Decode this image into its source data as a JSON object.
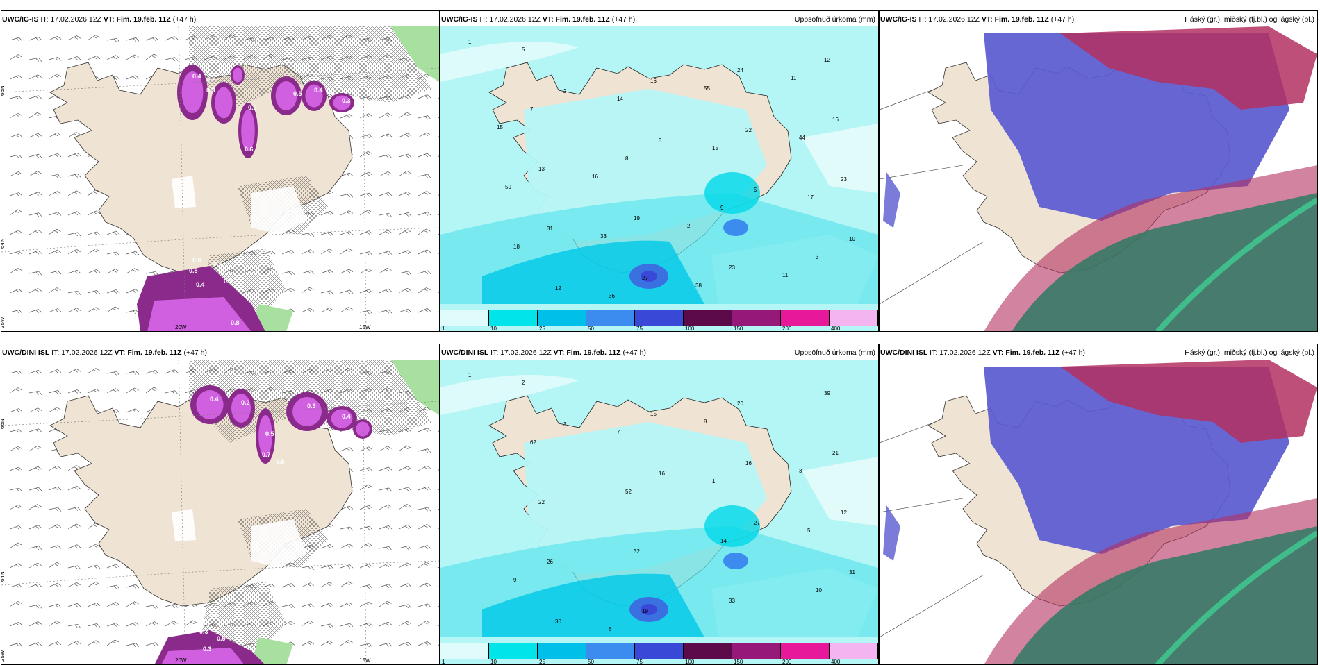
{
  "rows": [
    {
      "model": "UWC/IG-IS",
      "left_header": {
        "model": "UWC/IG-IS",
        "it": " IT: 17.02.2026 12Z ",
        "vt_label": "VT: Fim. 19.feb. 11Z",
        "lead": " (+47 h)"
      },
      "mid_header": {
        "model": "UWC/IG-IS",
        "it": " IT: 17.02.2026 12Z ",
        "vt_label": "VT: Fim. 19.feb. 11Z",
        "lead": " (+47 h)",
        "right": "Uppsöfnuð úrkoma (mm)"
      },
      "right_header": {
        "model": "UWC/IG-IS",
        "it": " IT: 17.02.2026 12Z ",
        "vt_label": "VT: Fim. 19.feb. 11Z",
        "lead": " (+47 h)",
        "right": "Háský (gr.), miðský (fj.bl.) og lágský (bl.)"
      },
      "left_labels": [
        "0.4",
        "0.7",
        "0.3",
        "0.2",
        "0.6",
        "0.5",
        "0.4",
        "0.3",
        "0.6",
        "0.8",
        "0.4",
        "0.3",
        "0.4",
        "0.8"
      ],
      "precip_labels": [
        "1",
        "2",
        "3",
        "5",
        "10",
        "12",
        "16",
        "22",
        "23",
        "31",
        "27",
        "24",
        "16",
        "13",
        "19",
        "23",
        "12",
        "7",
        "8",
        "9",
        "3",
        "5",
        "14",
        "15",
        "17",
        "18",
        "36",
        "55",
        "44",
        "59",
        "33",
        "38",
        "11",
        "15",
        "16",
        "2",
        "11"
      ],
      "axis_labels": {
        "lat66": "66N",
        "lat64": "64N",
        "lon20": "20W",
        "lon15": "15W",
        "lon25": "25W"
      }
    },
    {
      "model": "UWC/DINI ISL",
      "left_header": {
        "model": "UWC/DINI ISL",
        "it": " IT: 17.02.2026 12Z ",
        "vt_label": "VT: Fim. 19.feb. 11Z",
        "lead": " (+47 h)"
      },
      "mid_header": {
        "model": "UWC/DINI ISL",
        "it": " IT: 17.02.2026 12Z ",
        "vt_label": "VT: Fim. 19.feb. 11Z",
        "lead": " (+47 h)",
        "right": "Uppsöfnuð úrkoma (mm)"
      },
      "right_header": {
        "model": "UWC/DINI ISL",
        "it": " IT: 17.02.2026 12Z ",
        "vt_label": "VT: Fim. 19.feb. 11Z",
        "lead": " (+47 h)",
        "right": "Háský (gr.), miðský (fj.bl.) og lágský (bl.)"
      },
      "left_labels": [
        "0.4",
        "0.2",
        "0.5",
        "0.3",
        "0.4",
        "0.7",
        "0.5",
        "0.6",
        "0.4",
        "0.3",
        "0.5",
        "0.3"
      ],
      "precip_labels": [
        "1",
        "3",
        "16",
        "27",
        "31",
        "30",
        "15",
        "16",
        "12",
        "26",
        "19",
        "20",
        "21",
        "22",
        "32",
        "33",
        "39",
        "62",
        "52",
        "14",
        "10",
        "2",
        "7",
        "1",
        "5",
        "9",
        "6",
        "8",
        "3"
      ],
      "axis_labels": {
        "lat66": "66N",
        "lat64": "64N",
        "lon20": "20W",
        "lon15": "15W",
        "lon25": "25W"
      }
    }
  ],
  "colorbar": {
    "ticks": [
      "1",
      "10",
      "25",
      "50",
      "75",
      "100",
      "150",
      "200",
      "400"
    ],
    "colors": [
      "#dffbfb",
      "#00e4ea",
      "#00bfe8",
      "#3c8cf0",
      "#3a48d8",
      "#5c0a4a",
      "#96197a",
      "#e8189a",
      "#f4b4f0"
    ]
  },
  "colors": {
    "land": "#efe3d3",
    "ocean_precip": "#b4f5f5",
    "precip_light": "#5ee6ec",
    "snow_magenta": "#d060e0",
    "snow_dark": "#8a2a8a",
    "high_cloud": "#b33060",
    "mid_cloud": "#5a5ad0",
    "low_cloud": "#2e7a64"
  }
}
